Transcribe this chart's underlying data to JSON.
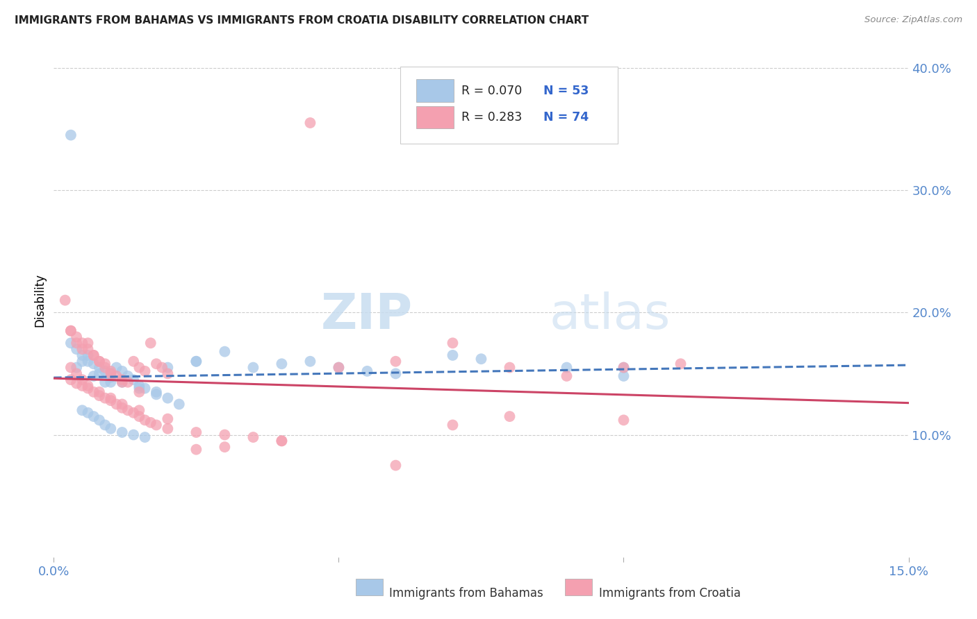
{
  "title": "IMMIGRANTS FROM BAHAMAS VS IMMIGRANTS FROM CROATIA DISABILITY CORRELATION CHART",
  "source": "Source: ZipAtlas.com",
  "ylabel": "Disability",
  "xlim": [
    0.0,
    0.15
  ],
  "ylim": [
    0.0,
    0.42
  ],
  "yticks": [
    0.1,
    0.2,
    0.3,
    0.4
  ],
  "ytick_labels": [
    "10.0%",
    "20.0%",
    "30.0%",
    "40.0%"
  ],
  "xtick_labels": [
    "0.0%",
    "",
    "",
    "",
    "",
    "",
    "",
    "",
    "",
    "15.0%"
  ],
  "legend_r1": "R = 0.070",
  "legend_n1": "N = 53",
  "legend_r2": "R = 0.283",
  "legend_n2": "N = 74",
  "color_bahamas": "#a8c8e8",
  "color_croatia": "#f4a0b0",
  "line_color_bahamas": "#4477bb",
  "line_color_croatia": "#cc4466",
  "background_color": "#ffffff",
  "watermark_zip": "ZIP",
  "watermark_atlas": "atlas",
  "bahamas_x": [
    0.003,
    0.004,
    0.005,
    0.006,
    0.007,
    0.008,
    0.009,
    0.01,
    0.01,
    0.011,
    0.012,
    0.013,
    0.014,
    0.015,
    0.016,
    0.018,
    0.02,
    0.022,
    0.005,
    0.006,
    0.007,
    0.008,
    0.009,
    0.01,
    0.012,
    0.014,
    0.016,
    0.02,
    0.025,
    0.03,
    0.035,
    0.04,
    0.045,
    0.05,
    0.055,
    0.06,
    0.07,
    0.075,
    0.09,
    0.1,
    0.003,
    0.004,
    0.005,
    0.006,
    0.007,
    0.008,
    0.009,
    0.01,
    0.012,
    0.015,
    0.018,
    0.025,
    0.1
  ],
  "bahamas_y": [
    0.345,
    0.155,
    0.16,
    0.165,
    0.148,
    0.15,
    0.143,
    0.147,
    0.143,
    0.155,
    0.152,
    0.148,
    0.145,
    0.14,
    0.138,
    0.135,
    0.13,
    0.125,
    0.12,
    0.118,
    0.115,
    0.112,
    0.108,
    0.105,
    0.102,
    0.1,
    0.098,
    0.155,
    0.16,
    0.168,
    0.155,
    0.158,
    0.16,
    0.155,
    0.152,
    0.15,
    0.165,
    0.162,
    0.155,
    0.148,
    0.175,
    0.17,
    0.165,
    0.16,
    0.158,
    0.155,
    0.152,
    0.15,
    0.143,
    0.138,
    0.133,
    0.16,
    0.155
  ],
  "croatia_x": [
    0.002,
    0.003,
    0.004,
    0.005,
    0.006,
    0.007,
    0.008,
    0.009,
    0.01,
    0.011,
    0.012,
    0.013,
    0.014,
    0.015,
    0.016,
    0.017,
    0.018,
    0.019,
    0.02,
    0.003,
    0.004,
    0.005,
    0.006,
    0.007,
    0.008,
    0.009,
    0.01,
    0.011,
    0.012,
    0.013,
    0.014,
    0.015,
    0.016,
    0.017,
    0.018,
    0.02,
    0.025,
    0.03,
    0.035,
    0.04,
    0.045,
    0.05,
    0.06,
    0.07,
    0.08,
    0.09,
    0.1,
    0.11,
    0.04,
    0.03,
    0.025,
    0.003,
    0.004,
    0.005,
    0.006,
    0.007,
    0.008,
    0.009,
    0.01,
    0.012,
    0.015,
    0.06,
    0.08,
    0.1,
    0.07,
    0.003,
    0.004,
    0.005,
    0.006,
    0.008,
    0.01,
    0.012,
    0.015,
    0.02
  ],
  "croatia_y": [
    0.21,
    0.185,
    0.175,
    0.17,
    0.175,
    0.165,
    0.16,
    0.158,
    0.152,
    0.148,
    0.145,
    0.143,
    0.16,
    0.155,
    0.152,
    0.175,
    0.158,
    0.155,
    0.15,
    0.145,
    0.142,
    0.14,
    0.138,
    0.135,
    0.132,
    0.13,
    0.128,
    0.125,
    0.122,
    0.12,
    0.118,
    0.115,
    0.112,
    0.11,
    0.108,
    0.105,
    0.102,
    0.1,
    0.098,
    0.095,
    0.355,
    0.155,
    0.16,
    0.175,
    0.155,
    0.148,
    0.155,
    0.158,
    0.095,
    0.09,
    0.088,
    0.185,
    0.18,
    0.175,
    0.17,
    0.165,
    0.16,
    0.155,
    0.15,
    0.143,
    0.135,
    0.075,
    0.115,
    0.112,
    0.108,
    0.155,
    0.15,
    0.145,
    0.14,
    0.135,
    0.13,
    0.125,
    0.12,
    0.113
  ]
}
